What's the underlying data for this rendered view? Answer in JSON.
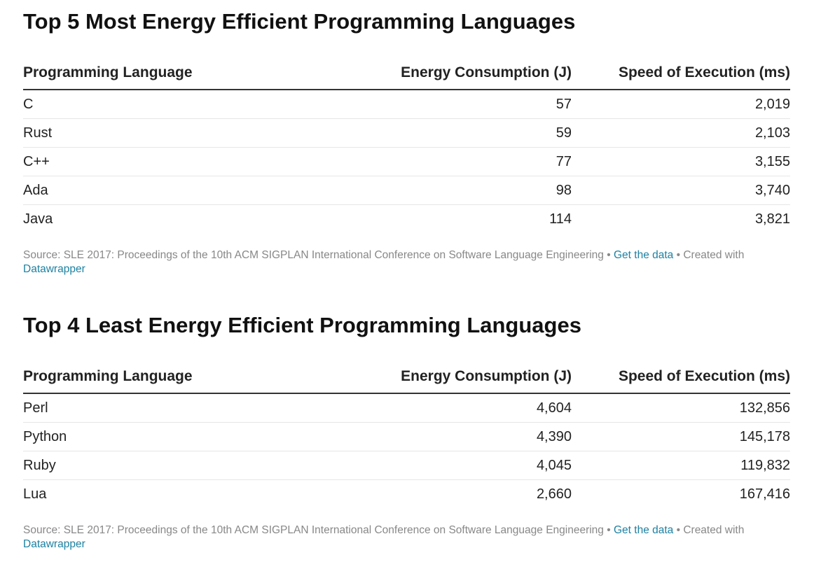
{
  "chart_data": [
    {
      "type": "table",
      "title": "Top 5 Most Energy Efficient Programming Languages",
      "columns": [
        "Programming Language",
        "Energy Consumption (J)",
        "Speed of Execution (ms)"
      ],
      "rows": [
        [
          "C",
          "57",
          "2,019"
        ],
        [
          "Rust",
          "59",
          "2,103"
        ],
        [
          "C++",
          "77",
          "3,155"
        ],
        [
          "Ada",
          "98",
          "3,740"
        ],
        [
          "Java",
          "114",
          "3,821"
        ]
      ],
      "footer": {
        "source": "Source: SLE 2017: Proceedings of the 10th ACM SIGPLAN International Conference on Software Language Engineering",
        "sep1": " • ",
        "get_data": "Get the data",
        "sep2": " • Created with ",
        "created_with": "Datawrapper"
      }
    },
    {
      "type": "table",
      "title": "Top 4 Least Energy Efficient Programming Languages",
      "columns": [
        "Programming Language",
        "Energy Consumption (J)",
        "Speed of Execution (ms)"
      ],
      "rows": [
        [
          "Perl",
          "4,604",
          "132,856"
        ],
        [
          "Python",
          "4,390",
          "145,178"
        ],
        [
          "Ruby",
          "4,045",
          "119,832"
        ],
        [
          "Lua",
          "2,660",
          "167,416"
        ]
      ],
      "footer": {
        "source": "Source: SLE 2017: Proceedings of the 10th ACM SIGPLAN International Conference on Software Language Engineering",
        "sep1": " • ",
        "get_data": "Get the data",
        "sep2": " • Created with ",
        "created_with": "Datawrapper"
      }
    }
  ],
  "colors": {
    "title": "#111111",
    "text": "#222222",
    "header_rule": "#333333",
    "row_rule": "#e6e6e6",
    "source_text": "#888888",
    "link": "#1d81a2"
  }
}
